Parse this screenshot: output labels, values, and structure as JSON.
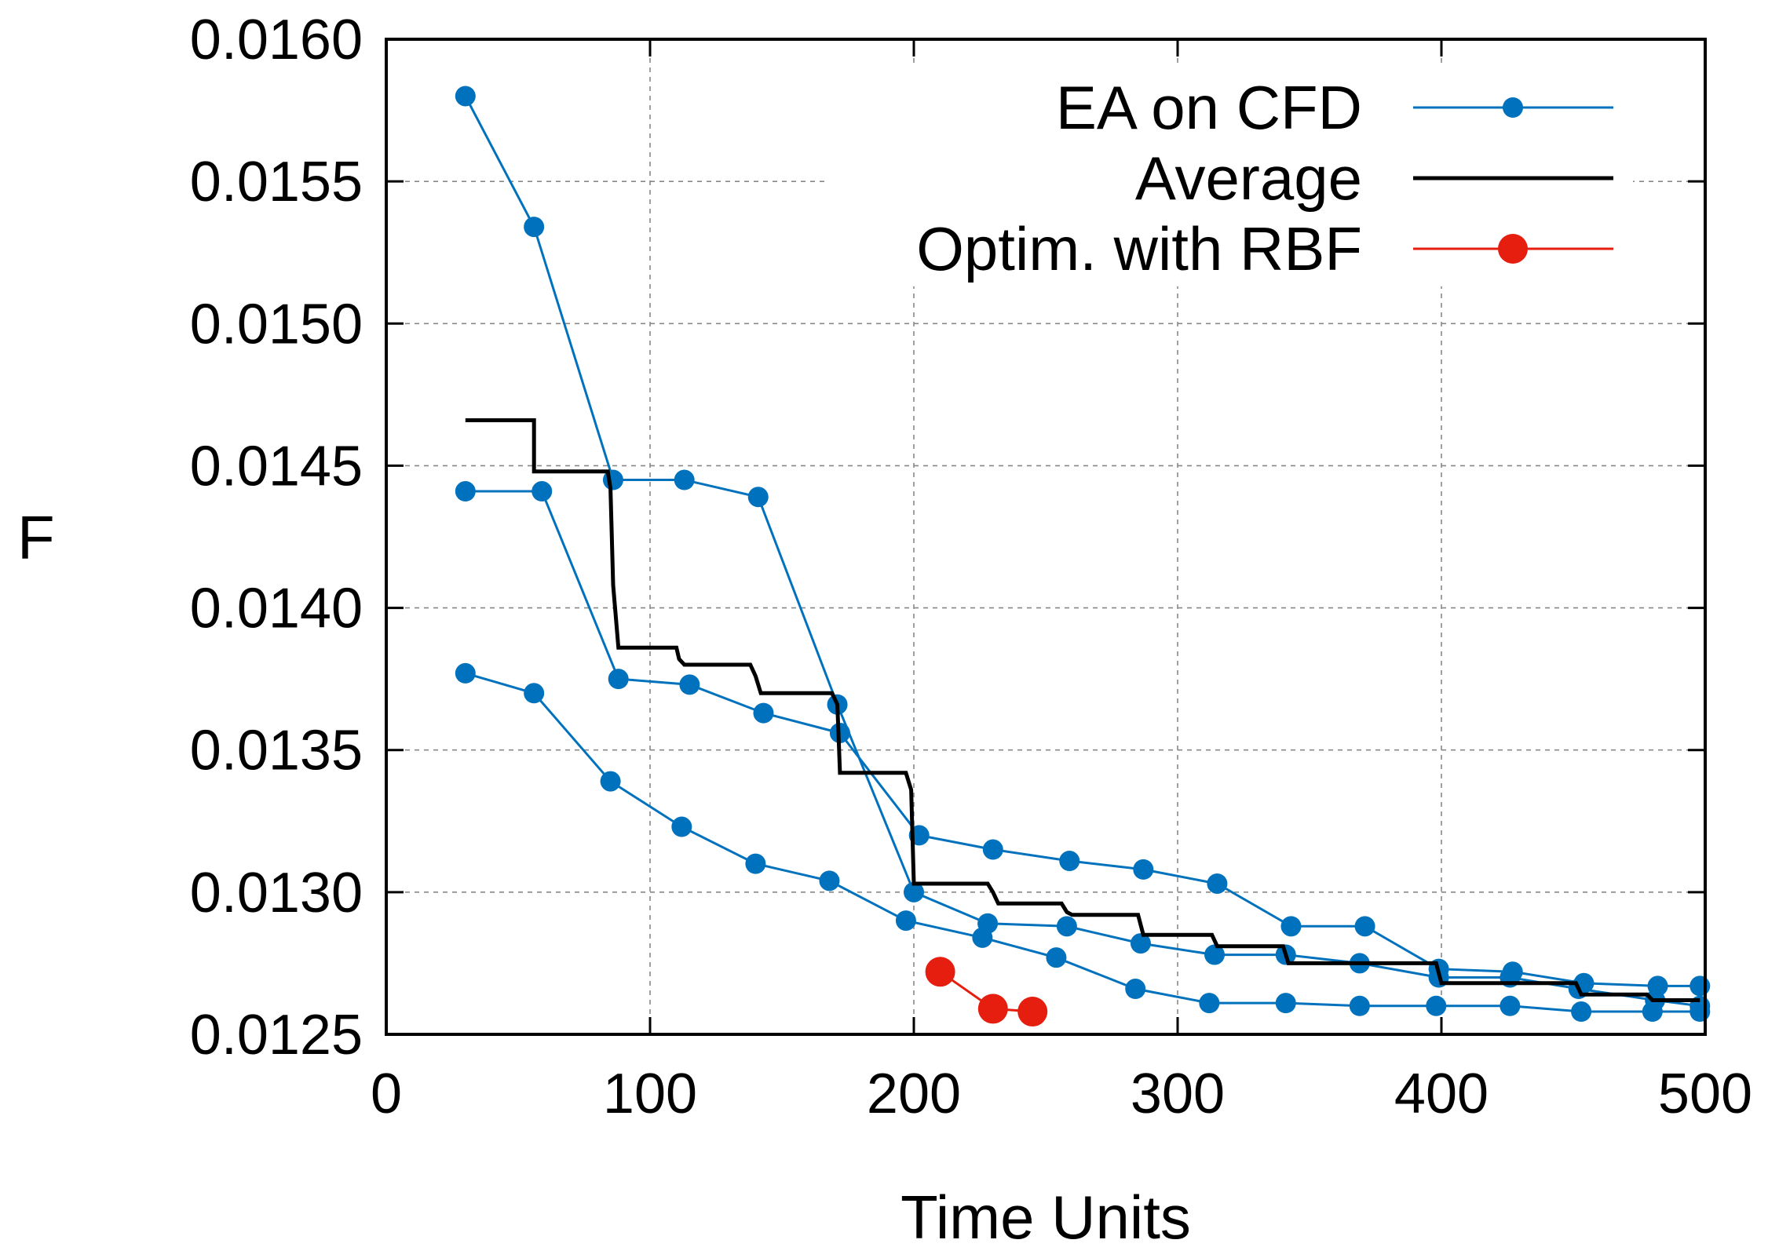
{
  "chart_data": {
    "type": "line",
    "title": "",
    "xlabel": "Time Units",
    "ylabel": "F",
    "xlim": [
      0,
      500
    ],
    "ylim": [
      0.0125,
      0.016
    ],
    "xticks": [
      "0",
      "100",
      "200",
      "300",
      "400",
      "500"
    ],
    "yticks": [
      "0.0125",
      "0.0130",
      "0.0135",
      "0.0140",
      "0.0145",
      "0.0150",
      "0.0155",
      "0.0160"
    ],
    "grid": true,
    "legend_position": "top-right",
    "colors": {
      "ea": "#0072bd",
      "average": "#000000",
      "rbf": "#e51e10"
    },
    "legend": [
      {
        "label": "EA on CFD",
        "series": "ea"
      },
      {
        "label": "Average",
        "series": "average"
      },
      {
        "label": "Optim. with RBF",
        "series": "rbf"
      }
    ],
    "series": [
      {
        "name": "EA on CFD (run 1)",
        "kind": "ea",
        "points": [
          [
            30,
            0.0158
          ],
          [
            56,
            0.01534
          ],
          [
            86,
            0.01445
          ],
          [
            113,
            0.01445
          ],
          [
            141,
            0.01439
          ],
          [
            171,
            0.01366
          ],
          [
            200,
            0.013
          ],
          [
            228,
            0.01289
          ],
          [
            258,
            0.01288
          ],
          [
            286,
            0.01282
          ],
          [
            314,
            0.01278
          ],
          [
            341,
            0.01278
          ],
          [
            369,
            0.01275
          ],
          [
            399,
            0.0127
          ],
          [
            426,
            0.0127
          ],
          [
            452,
            0.01266
          ],
          [
            481,
            0.01262
          ],
          [
            498,
            0.0126
          ]
        ]
      },
      {
        "name": "EA on CFD (run 2)",
        "kind": "ea",
        "points": [
          [
            30,
            0.01441
          ],
          [
            59,
            0.01441
          ],
          [
            88,
            0.01375
          ],
          [
            115,
            0.01373
          ],
          [
            143,
            0.01363
          ],
          [
            172,
            0.01356
          ],
          [
            202,
            0.0132
          ],
          [
            230,
            0.01315
          ],
          [
            259,
            0.01311
          ],
          [
            287,
            0.01308
          ],
          [
            315,
            0.01303
          ],
          [
            343,
            0.01288
          ],
          [
            371,
            0.01288
          ],
          [
            399,
            0.01273
          ],
          [
            427,
            0.01272
          ],
          [
            454,
            0.01268
          ],
          [
            482,
            0.01267
          ],
          [
            498,
            0.01267
          ]
        ]
      },
      {
        "name": "EA on CFD (run 3)",
        "kind": "ea",
        "points": [
          [
            30,
            0.01377
          ],
          [
            56,
            0.0137
          ],
          [
            85,
            0.01339
          ],
          [
            112,
            0.01323
          ],
          [
            140,
            0.0131
          ],
          [
            168,
            0.01304
          ],
          [
            197,
            0.0129
          ],
          [
            226,
            0.01284
          ],
          [
            254,
            0.01277
          ],
          [
            284,
            0.01266
          ],
          [
            312,
            0.01261
          ],
          [
            341,
            0.01261
          ],
          [
            369,
            0.0126
          ],
          [
            398,
            0.0126
          ],
          [
            426,
            0.0126
          ],
          [
            453,
            0.01258
          ],
          [
            480,
            0.01258
          ],
          [
            498,
            0.01258
          ]
        ]
      },
      {
        "name": "Average",
        "kind": "average",
        "points": [
          [
            30,
            0.01466
          ],
          [
            56,
            0.01466
          ],
          [
            56,
            0.01448
          ],
          [
            84,
            0.01448
          ],
          [
            85,
            0.01442
          ],
          [
            86,
            0.01408
          ],
          [
            88,
            0.01386
          ],
          [
            110,
            0.01386
          ],
          [
            111,
            0.01382
          ],
          [
            113,
            0.0138
          ],
          [
            138,
            0.0138
          ],
          [
            140,
            0.01376
          ],
          [
            142,
            0.0137
          ],
          [
            169,
            0.0137
          ],
          [
            171,
            0.01366
          ],
          [
            172,
            0.01342
          ],
          [
            197,
            0.01342
          ],
          [
            199,
            0.01336
          ],
          [
            200,
            0.01303
          ],
          [
            228,
            0.01303
          ],
          [
            230,
            0.013
          ],
          [
            232,
            0.01296
          ],
          [
            256,
            0.01296
          ],
          [
            258,
            0.01293
          ],
          [
            260,
            0.01292
          ],
          [
            285,
            0.01292
          ],
          [
            287,
            0.01285
          ],
          [
            313,
            0.01285
          ],
          [
            315,
            0.01281
          ],
          [
            340,
            0.01281
          ],
          [
            342,
            0.01275
          ],
          [
            398,
            0.01275
          ],
          [
            400,
            0.01268
          ],
          [
            451,
            0.01268
          ],
          [
            453,
            0.01264
          ],
          [
            478,
            0.01264
          ],
          [
            480,
            0.01262
          ],
          [
            498,
            0.01262
          ]
        ]
      },
      {
        "name": "Optim. with RBF",
        "kind": "rbf",
        "points": [
          [
            210,
            0.01272
          ],
          [
            230,
            0.01259
          ],
          [
            245,
            0.01258
          ]
        ]
      }
    ]
  }
}
